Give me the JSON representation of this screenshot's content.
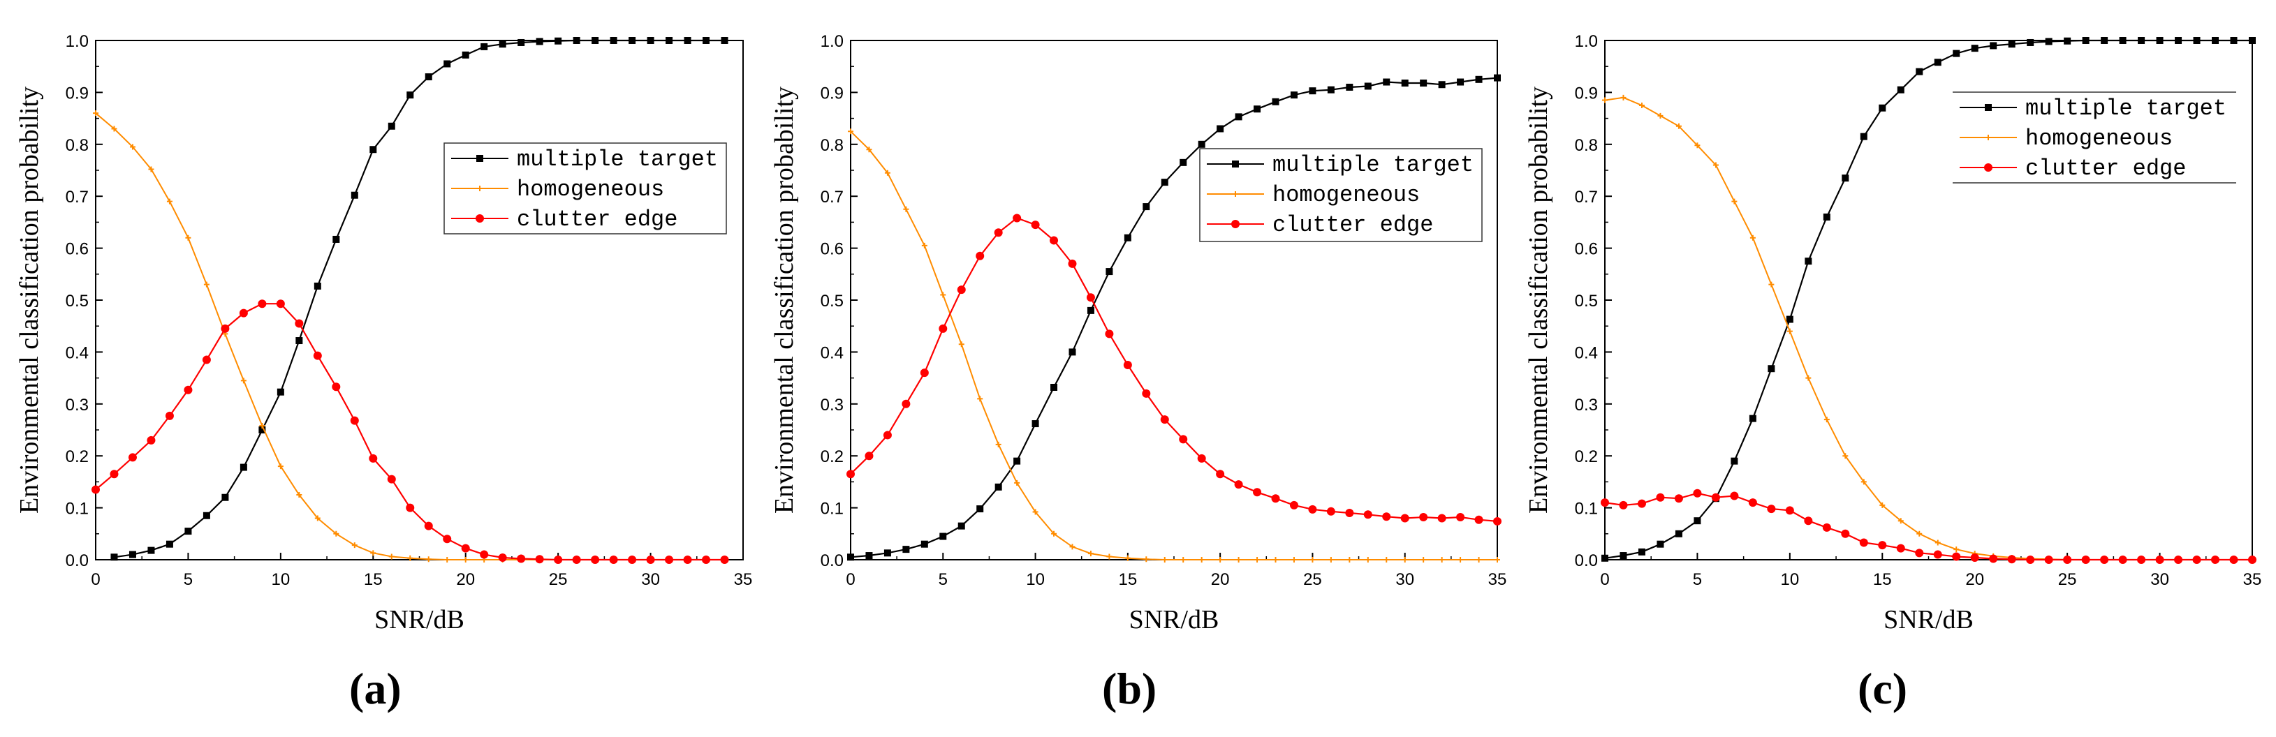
{
  "colors": {
    "multiple": "#000000",
    "homogeneous": "#FF8C00",
    "clutter": "#FF0000",
    "axis": "#000000"
  },
  "chart_data": [
    {
      "type": "line",
      "panel_label": "(a)",
      "xlabel": "SNR/dB",
      "ylabel": "Environmental classification probability",
      "xlim": [
        0,
        35
      ],
      "ylim": [
        0,
        1.0
      ],
      "xticks": [
        "0",
        "5",
        "10",
        "15",
        "20",
        "25",
        "30",
        "35"
      ],
      "yticks": [
        "0.0",
        "0.1",
        "0.2",
        "0.3",
        "0.4",
        "0.5",
        "0.6",
        "0.7",
        "0.8",
        "0.9",
        "1.0"
      ],
      "legend_position": "center-right",
      "series": [
        {
          "name": "multiple target",
          "marker": "square",
          "x": [
            1,
            2,
            3,
            4,
            5,
            6,
            7,
            8,
            9,
            10,
            11,
            12,
            13,
            14,
            15,
            16,
            17,
            18,
            19,
            20,
            21,
            22,
            23,
            24,
            25,
            26,
            27,
            28,
            29,
            30,
            31,
            32,
            33,
            34
          ],
          "y": [
            0.005,
            0.01,
            0.018,
            0.03,
            0.055,
            0.085,
            0.12,
            0.178,
            0.25,
            0.323,
            0.422,
            0.527,
            0.617,
            0.702,
            0.79,
            0.835,
            0.895,
            0.93,
            0.955,
            0.972,
            0.988,
            0.993,
            0.996,
            0.998,
            0.999,
            1.0,
            1.0,
            1.0,
            1.0,
            1.0,
            1.0,
            1.0,
            1.0,
            1.0
          ]
        },
        {
          "name": "homogeneous",
          "marker": "plus",
          "x": [
            0,
            1,
            2,
            3,
            4,
            5,
            6,
            7,
            8,
            9,
            10,
            11,
            12,
            13,
            14,
            15,
            16,
            17,
            18,
            19,
            20,
            21,
            22,
            23,
            24,
            25,
            26,
            27,
            28,
            29,
            30,
            31,
            32,
            33,
            34
          ],
          "y": [
            0.86,
            0.83,
            0.795,
            0.752,
            0.69,
            0.62,
            0.53,
            0.435,
            0.345,
            0.258,
            0.18,
            0.125,
            0.08,
            0.05,
            0.028,
            0.013,
            0.006,
            0.003,
            0.001,
            0,
            0,
            0,
            0,
            0,
            0,
            0,
            0,
            0,
            0,
            0,
            0,
            0,
            0,
            0,
            0
          ]
        },
        {
          "name": "clutter edge",
          "marker": "circle",
          "x": [
            0,
            1,
            2,
            3,
            4,
            5,
            6,
            7,
            8,
            9,
            10,
            11,
            12,
            13,
            14,
            15,
            16,
            17,
            18,
            19,
            20,
            21,
            22,
            23,
            24,
            25,
            26,
            27,
            28,
            29,
            30,
            31,
            32,
            33,
            34
          ],
          "y": [
            0.135,
            0.165,
            0.197,
            0.23,
            0.277,
            0.327,
            0.385,
            0.445,
            0.475,
            0.493,
            0.493,
            0.455,
            0.393,
            0.333,
            0.268,
            0.195,
            0.155,
            0.1,
            0.065,
            0.04,
            0.022,
            0.01,
            0.004,
            0.002,
            0.001,
            0,
            0,
            0,
            0,
            0,
            0,
            0,
            0,
            0,
            0
          ]
        }
      ]
    },
    {
      "type": "line",
      "panel_label": "(b)",
      "xlabel": "SNR/dB",
      "ylabel": "Environmental classification probability",
      "xlim": [
        0,
        35
      ],
      "ylim": [
        0,
        1.0
      ],
      "xticks": [
        "0",
        "5",
        "10",
        "15",
        "20",
        "25",
        "30",
        "35"
      ],
      "yticks": [
        "0.0",
        "0.1",
        "0.2",
        "0.3",
        "0.4",
        "0.5",
        "0.6",
        "0.7",
        "0.8",
        "0.9",
        "1.0"
      ],
      "legend_position": "center-right",
      "series": [
        {
          "name": "multiple target",
          "marker": "square",
          "x": [
            0,
            1,
            2,
            3,
            4,
            5,
            6,
            7,
            8,
            9,
            10,
            11,
            12,
            13,
            14,
            15,
            16,
            17,
            18,
            19,
            20,
            21,
            22,
            23,
            24,
            25,
            26,
            27,
            28,
            29,
            30,
            31,
            32,
            33,
            34,
            35
          ],
          "y": [
            0.005,
            0.008,
            0.013,
            0.02,
            0.03,
            0.045,
            0.065,
            0.098,
            0.14,
            0.19,
            0.262,
            0.332,
            0.4,
            0.48,
            0.555,
            0.62,
            0.68,
            0.727,
            0.765,
            0.8,
            0.83,
            0.853,
            0.868,
            0.882,
            0.895,
            0.903,
            0.905,
            0.91,
            0.912,
            0.92,
            0.918,
            0.918,
            0.915,
            0.92,
            0.925,
            0.928
          ]
        },
        {
          "name": "homogeneous",
          "marker": "plus",
          "x": [
            0,
            1,
            2,
            3,
            4,
            5,
            6,
            7,
            8,
            9,
            10,
            11,
            12,
            13,
            14,
            15,
            16,
            17,
            18,
            19,
            20,
            21,
            22,
            23,
            24,
            25,
            26,
            27,
            28,
            29,
            30,
            31,
            32,
            33,
            34,
            35
          ],
          "y": [
            0.825,
            0.79,
            0.745,
            0.675,
            0.605,
            0.51,
            0.415,
            0.31,
            0.222,
            0.148,
            0.092,
            0.05,
            0.025,
            0.012,
            0.006,
            0.003,
            0.001,
            0,
            0,
            0,
            0,
            0,
            0,
            0,
            0,
            0,
            0,
            0,
            0,
            0,
            0,
            0,
            0,
            0,
            0,
            0
          ]
        },
        {
          "name": "clutter edge",
          "marker": "circle",
          "x": [
            0,
            1,
            2,
            3,
            4,
            5,
            6,
            7,
            8,
            9,
            10,
            11,
            12,
            13,
            14,
            15,
            16,
            17,
            18,
            19,
            20,
            21,
            22,
            23,
            24,
            25,
            26,
            27,
            28,
            29,
            30,
            31,
            32,
            33,
            34,
            35
          ],
          "y": [
            0.165,
            0.2,
            0.24,
            0.3,
            0.36,
            0.445,
            0.52,
            0.585,
            0.63,
            0.658,
            0.645,
            0.615,
            0.57,
            0.505,
            0.435,
            0.375,
            0.32,
            0.27,
            0.232,
            0.195,
            0.165,
            0.145,
            0.13,
            0.118,
            0.105,
            0.097,
            0.093,
            0.09,
            0.087,
            0.083,
            0.08,
            0.082,
            0.08,
            0.082,
            0.077,
            0.074
          ]
        }
      ]
    },
    {
      "type": "line",
      "panel_label": "(c)",
      "xlabel": "SNR/dB",
      "ylabel": "Environmental classification probability",
      "xlim": [
        0,
        35
      ],
      "ylim": [
        0,
        1.0
      ],
      "xticks": [
        "0",
        "5",
        "10",
        "15",
        "20",
        "25",
        "30",
        "35"
      ],
      "yticks": [
        "0.0",
        "0.1",
        "0.2",
        "0.3",
        "0.4",
        "0.5",
        "0.6",
        "0.7",
        "0.8",
        "0.9",
        "1.0"
      ],
      "legend_position": "top-right",
      "series": [
        {
          "name": "multiple target",
          "marker": "square",
          "x": [
            0,
            1,
            2,
            3,
            4,
            5,
            6,
            7,
            8,
            9,
            10,
            11,
            12,
            13,
            14,
            15,
            16,
            17,
            18,
            19,
            20,
            21,
            22,
            23,
            24,
            25,
            26,
            27,
            28,
            29,
            30,
            31,
            32,
            33,
            34,
            35
          ],
          "y": [
            0.003,
            0.008,
            0.015,
            0.03,
            0.05,
            0.075,
            0.118,
            0.19,
            0.272,
            0.368,
            0.463,
            0.575,
            0.66,
            0.735,
            0.815,
            0.87,
            0.905,
            0.94,
            0.958,
            0.975,
            0.985,
            0.99,
            0.993,
            0.996,
            0.998,
            0.999,
            1.0,
            1.0,
            1.0,
            1.0,
            1.0,
            1.0,
            1.0,
            1.0,
            1.0,
            1.0
          ]
        },
        {
          "name": "homogeneous",
          "marker": "plus",
          "x": [
            0,
            1,
            2,
            3,
            4,
            5,
            6,
            7,
            8,
            9,
            10,
            11,
            12,
            13,
            14,
            15,
            16,
            17,
            18,
            19,
            20,
            21,
            22,
            23,
            24,
            25,
            26,
            27,
            28,
            29,
            30,
            31,
            32,
            33,
            34,
            35
          ],
          "y": [
            0.885,
            0.89,
            0.875,
            0.855,
            0.835,
            0.798,
            0.76,
            0.69,
            0.62,
            0.53,
            0.44,
            0.35,
            0.27,
            0.2,
            0.15,
            0.105,
            0.075,
            0.05,
            0.033,
            0.02,
            0.012,
            0.007,
            0.004,
            0.002,
            0.001,
            0,
            0,
            0,
            0,
            0,
            0,
            0,
            0,
            0,
            0,
            0
          ]
        },
        {
          "name": "clutter edge",
          "marker": "circle",
          "x": [
            0,
            1,
            2,
            3,
            4,
            5,
            6,
            7,
            8,
            9,
            10,
            11,
            12,
            13,
            14,
            15,
            16,
            17,
            18,
            19,
            20,
            21,
            22,
            23,
            24,
            25,
            26,
            27,
            28,
            29,
            30,
            31,
            32,
            33,
            34,
            35
          ],
          "y": [
            0.11,
            0.105,
            0.108,
            0.12,
            0.118,
            0.128,
            0.12,
            0.123,
            0.11,
            0.098,
            0.095,
            0.075,
            0.062,
            0.05,
            0.033,
            0.028,
            0.022,
            0.013,
            0.01,
            0.006,
            0.004,
            0.002,
            0.001,
            0,
            0,
            0,
            0,
            0,
            0,
            0,
            0,
            0,
            0,
            0,
            0,
            0
          ]
        }
      ]
    }
  ]
}
